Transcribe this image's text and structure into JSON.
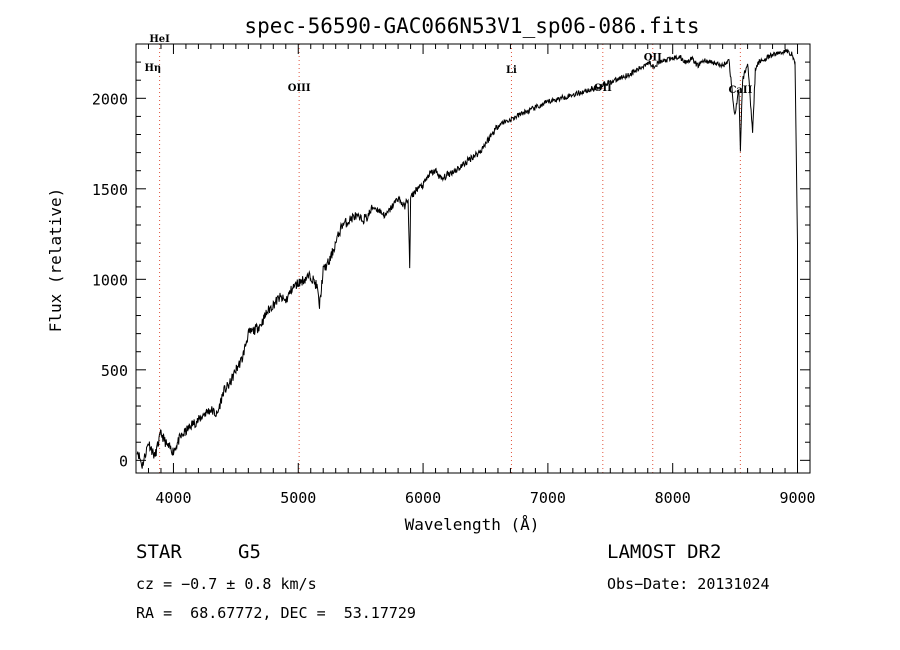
{
  "chart_data": {
    "type": "line",
    "title": "spec-56590-GAC066N53V1_sp06-086.fits",
    "xlabel": "Wavelength (Å)",
    "ylabel": "Flux (relative)",
    "xlim": [
      3700,
      9100
    ],
    "ylim": [
      -70,
      2300
    ],
    "xticks": [
      4000,
      5000,
      6000,
      7000,
      8000,
      9000
    ],
    "yticks": [
      0,
      500,
      1000,
      1500,
      2000
    ],
    "grid": false,
    "series": [
      {
        "x": [
          3710,
          3750,
          3800,
          3850,
          3900,
          3950,
          4000,
          4050,
          4100,
          4150,
          4200,
          4250,
          4300,
          4350,
          4400,
          4450,
          4500,
          4550,
          4600,
          4650,
          4700,
          4750,
          4800,
          4850,
          4900,
          4950,
          5000,
          5050,
          5100,
          5150,
          5170,
          5200,
          5250,
          5300,
          5350,
          5400,
          5450,
          5500,
          5550,
          5600,
          5650,
          5700,
          5750,
          5800,
          5850,
          5880,
          5893,
          5900,
          5950,
          6000,
          6050,
          6100,
          6150,
          6200,
          6250,
          6300,
          6350,
          6400,
          6450,
          6500,
          6550,
          6600,
          6650,
          6700,
          6750,
          6800,
          6850,
          6900,
          6950,
          7000,
          7050,
          7100,
          7150,
          7200,
          7250,
          7300,
          7350,
          7400,
          7450,
          7500,
          7550,
          7600,
          7650,
          7700,
          7750,
          7800,
          7850,
          7900,
          7950,
          8000,
          8050,
          8100,
          8150,
          8200,
          8250,
          8300,
          8350,
          8400,
          8450,
          8498,
          8530,
          8542,
          8560,
          8600,
          8640,
          8662,
          8690,
          8750,
          8800,
          8850,
          8900,
          8950,
          8980,
          9000
        ],
        "y": [
          60,
          -30,
          100,
          20,
          150,
          80,
          50,
          120,
          160,
          200,
          220,
          260,
          280,
          250,
          380,
          420,
          500,
          560,
          700,
          720,
          750,
          820,
          860,
          900,
          880,
          950,
          980,
          1000,
          1020,
          960,
          850,
          1050,
          1100,
          1200,
          1300,
          1320,
          1350,
          1330,
          1340,
          1400,
          1380,
          1350,
          1400,
          1450,
          1400,
          1450,
          1050,
          1450,
          1500,
          1520,
          1580,
          1600,
          1550,
          1580,
          1600,
          1620,
          1650,
          1680,
          1700,
          1750,
          1800,
          1850,
          1870,
          1880,
          1900,
          1920,
          1930,
          1950,
          1960,
          1980,
          1990,
          2000,
          2010,
          2020,
          2030,
          2040,
          2050,
          2060,
          2080,
          2090,
          2100,
          2120,
          2130,
          2150,
          2170,
          2200,
          2180,
          2200,
          2210,
          2220,
          2230,
          2200,
          2220,
          2180,
          2210,
          2200,
          2190,
          2180,
          2210,
          1900,
          2050,
          1720,
          2100,
          2200,
          1820,
          2150,
          2200,
          2220,
          2240,
          2250,
          2260,
          2250,
          2200,
          1200
        ]
      }
    ],
    "line_labels": [
      {
        "label": "HeI",
        "x": 3889,
        "y": 2310
      },
      {
        "label": "Hη",
        "x": 3835,
        "y": 2150
      },
      {
        "label": "OIII",
        "x": 5007,
        "y": 2040
      },
      {
        "label": "Li",
        "x": 6708,
        "y": 2140
      },
      {
        "label": "OII",
        "x": 7440,
        "y": 2040
      },
      {
        "label": "OII",
        "x": 7840,
        "y": 2210
      },
      {
        "label": "CaII",
        "x": 8542,
        "y": 2030
      }
    ],
    "marker_lines": [
      3889,
      5007,
      6708,
      7440,
      7840,
      8542
    ]
  },
  "info": {
    "object_type": "STAR",
    "subclass": "G5",
    "survey": "LAMOST DR2",
    "cz": "cz = −0.7 ± 0.8 km/s",
    "obs_date": "Obs−Date: 20131024",
    "coords": "RA =  68.67772, DEC =  53.17729"
  },
  "colors": {
    "spectrum": "#000000",
    "marker_line": "#e0533c",
    "axis": "#000000"
  }
}
